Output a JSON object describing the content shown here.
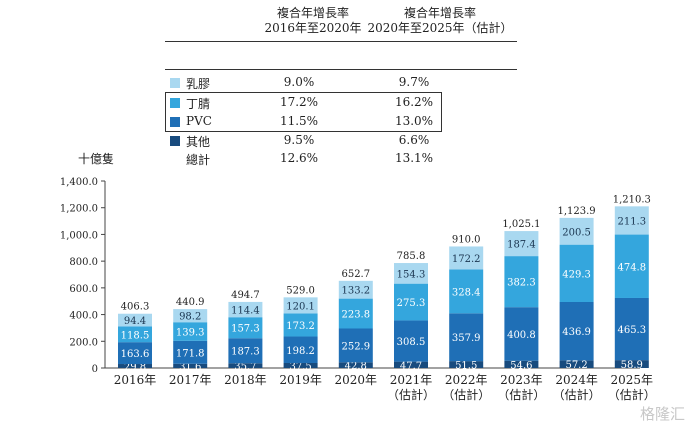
{
  "header": {
    "col1_line1": "複合年增長率",
    "col1_line2": "2016年至2020年",
    "col2_line1": "複合年增長率",
    "col2_line2": "2020年至2025年（估計）"
  },
  "legend": [
    {
      "name": "乳膠",
      "cagr_2016_2020": "9.0%",
      "cagr_2020_2025": "9.7%",
      "color": "#a9d8f0"
    },
    {
      "name": "丁腈",
      "cagr_2016_2020": "17.2%",
      "cagr_2020_2025": "16.2%",
      "color": "#34a6dd"
    },
    {
      "name": "PVC",
      "cagr_2016_2020": "11.5%",
      "cagr_2020_2025": "13.0%",
      "color": "#1f6fb6"
    },
    {
      "name": "其他",
      "cagr_2016_2020": "9.5%",
      "cagr_2020_2025": "6.6%",
      "color": "#184b7e"
    },
    {
      "name": "總計",
      "cagr_2016_2020": "12.6%",
      "cagr_2020_2025": "13.1%"
    }
  ],
  "unit_label": "十億隻",
  "watermark": "格隆汇",
  "chart_data": {
    "type": "bar",
    "stacked": true,
    "categories": [
      "2016年",
      "2017年",
      "2018年",
      "2019年",
      "2020年",
      "2021年\n（估計）",
      "2022年\n（估計）",
      "2023年\n（估計）",
      "2024年\n（估計）",
      "2025年\n（估計）"
    ],
    "series": [
      {
        "name": "其他",
        "values": [
          29.8,
          31.6,
          35.7,
          37.5,
          42.8,
          47.7,
          51.5,
          54.6,
          57.2,
          58.9
        ],
        "color": "#184b7e"
      },
      {
        "name": "PVC",
        "values": [
          163.6,
          171.8,
          187.3,
          198.2,
          252.9,
          308.5,
          357.9,
          400.8,
          436.9,
          465.3
        ],
        "color": "#1f6fb6"
      },
      {
        "name": "丁腈",
        "values": [
          118.5,
          139.3,
          157.3,
          173.2,
          223.8,
          275.3,
          328.4,
          382.3,
          429.3,
          474.8
        ],
        "color": "#34a6dd"
      },
      {
        "name": "乳膠",
        "values": [
          94.4,
          98.2,
          114.4,
          120.1,
          133.2,
          154.3,
          172.2,
          187.4,
          200.5,
          211.3
        ],
        "color": "#a9d8f0"
      }
    ],
    "totals": [
      "406.3",
      "440.9",
      "494.7",
      "529.0",
      "652.7",
      "785.8",
      "910.0",
      "1,025.1",
      "1,123.9",
      "1,210.3"
    ],
    "yticks": [
      "0",
      "200.0",
      "400.0",
      "600.0",
      "800.0",
      "1,000.0",
      "1,200.0",
      "1,400.0"
    ],
    "ylim": [
      0,
      1400
    ],
    "grid": false
  }
}
